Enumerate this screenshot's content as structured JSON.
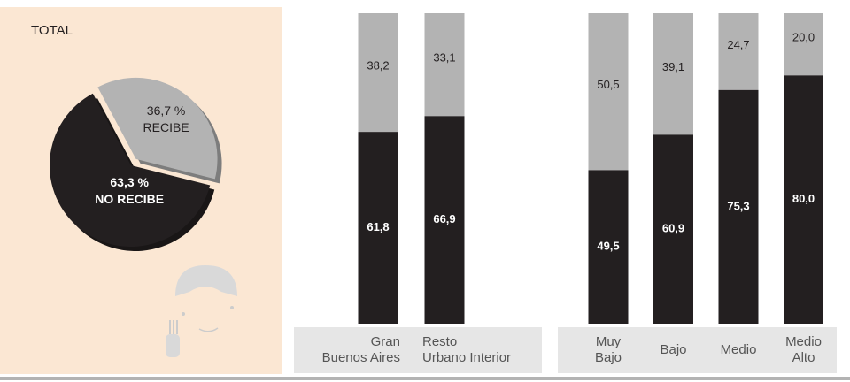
{
  "chart_data": [
    {
      "type": "pie",
      "title": "TOTAL",
      "categories": [
        "RECIBE",
        "NO RECIBE"
      ],
      "values": [
        36.7,
        63.3
      ],
      "value_labels": [
        "36,7 %",
        "63,3 %"
      ],
      "colors": [
        "#b3b3b3",
        "#231f20"
      ]
    },
    {
      "type": "stacked_bar",
      "categories": [
        [
          "Gran",
          "Buenos Aires"
        ],
        [
          "Resto",
          "Urbano Interior"
        ]
      ],
      "ylim": [
        0,
        100
      ],
      "series": [
        {
          "color": "#231f20",
          "values": [
            61.8,
            66.9
          ],
          "value_labels": [
            "61,8",
            "66,9"
          ]
        },
        {
          "color": "#b3b3b3",
          "values": [
            38.2,
            33.1
          ],
          "value_labels": [
            "38,2",
            "33,1"
          ]
        }
      ]
    },
    {
      "type": "stacked_bar",
      "categories": [
        [
          "Muy",
          "Bajo"
        ],
        [
          "Bajo"
        ],
        [
          "Medio"
        ],
        [
          "Medio",
          "Alto"
        ]
      ],
      "ylim": [
        0,
        100
      ],
      "series": [
        {
          "color": "#231f20",
          "values": [
            49.5,
            60.9,
            75.3,
            80.0
          ],
          "value_labels": [
            "49,5",
            "60,9",
            "75,3",
            "80,0"
          ]
        },
        {
          "color": "#b3b3b3",
          "values": [
            50.5,
            39.1,
            24.7,
            20.0
          ],
          "value_labels": [
            "50,5",
            "39,1",
            "24,7",
            "20,0"
          ]
        }
      ]
    }
  ]
}
